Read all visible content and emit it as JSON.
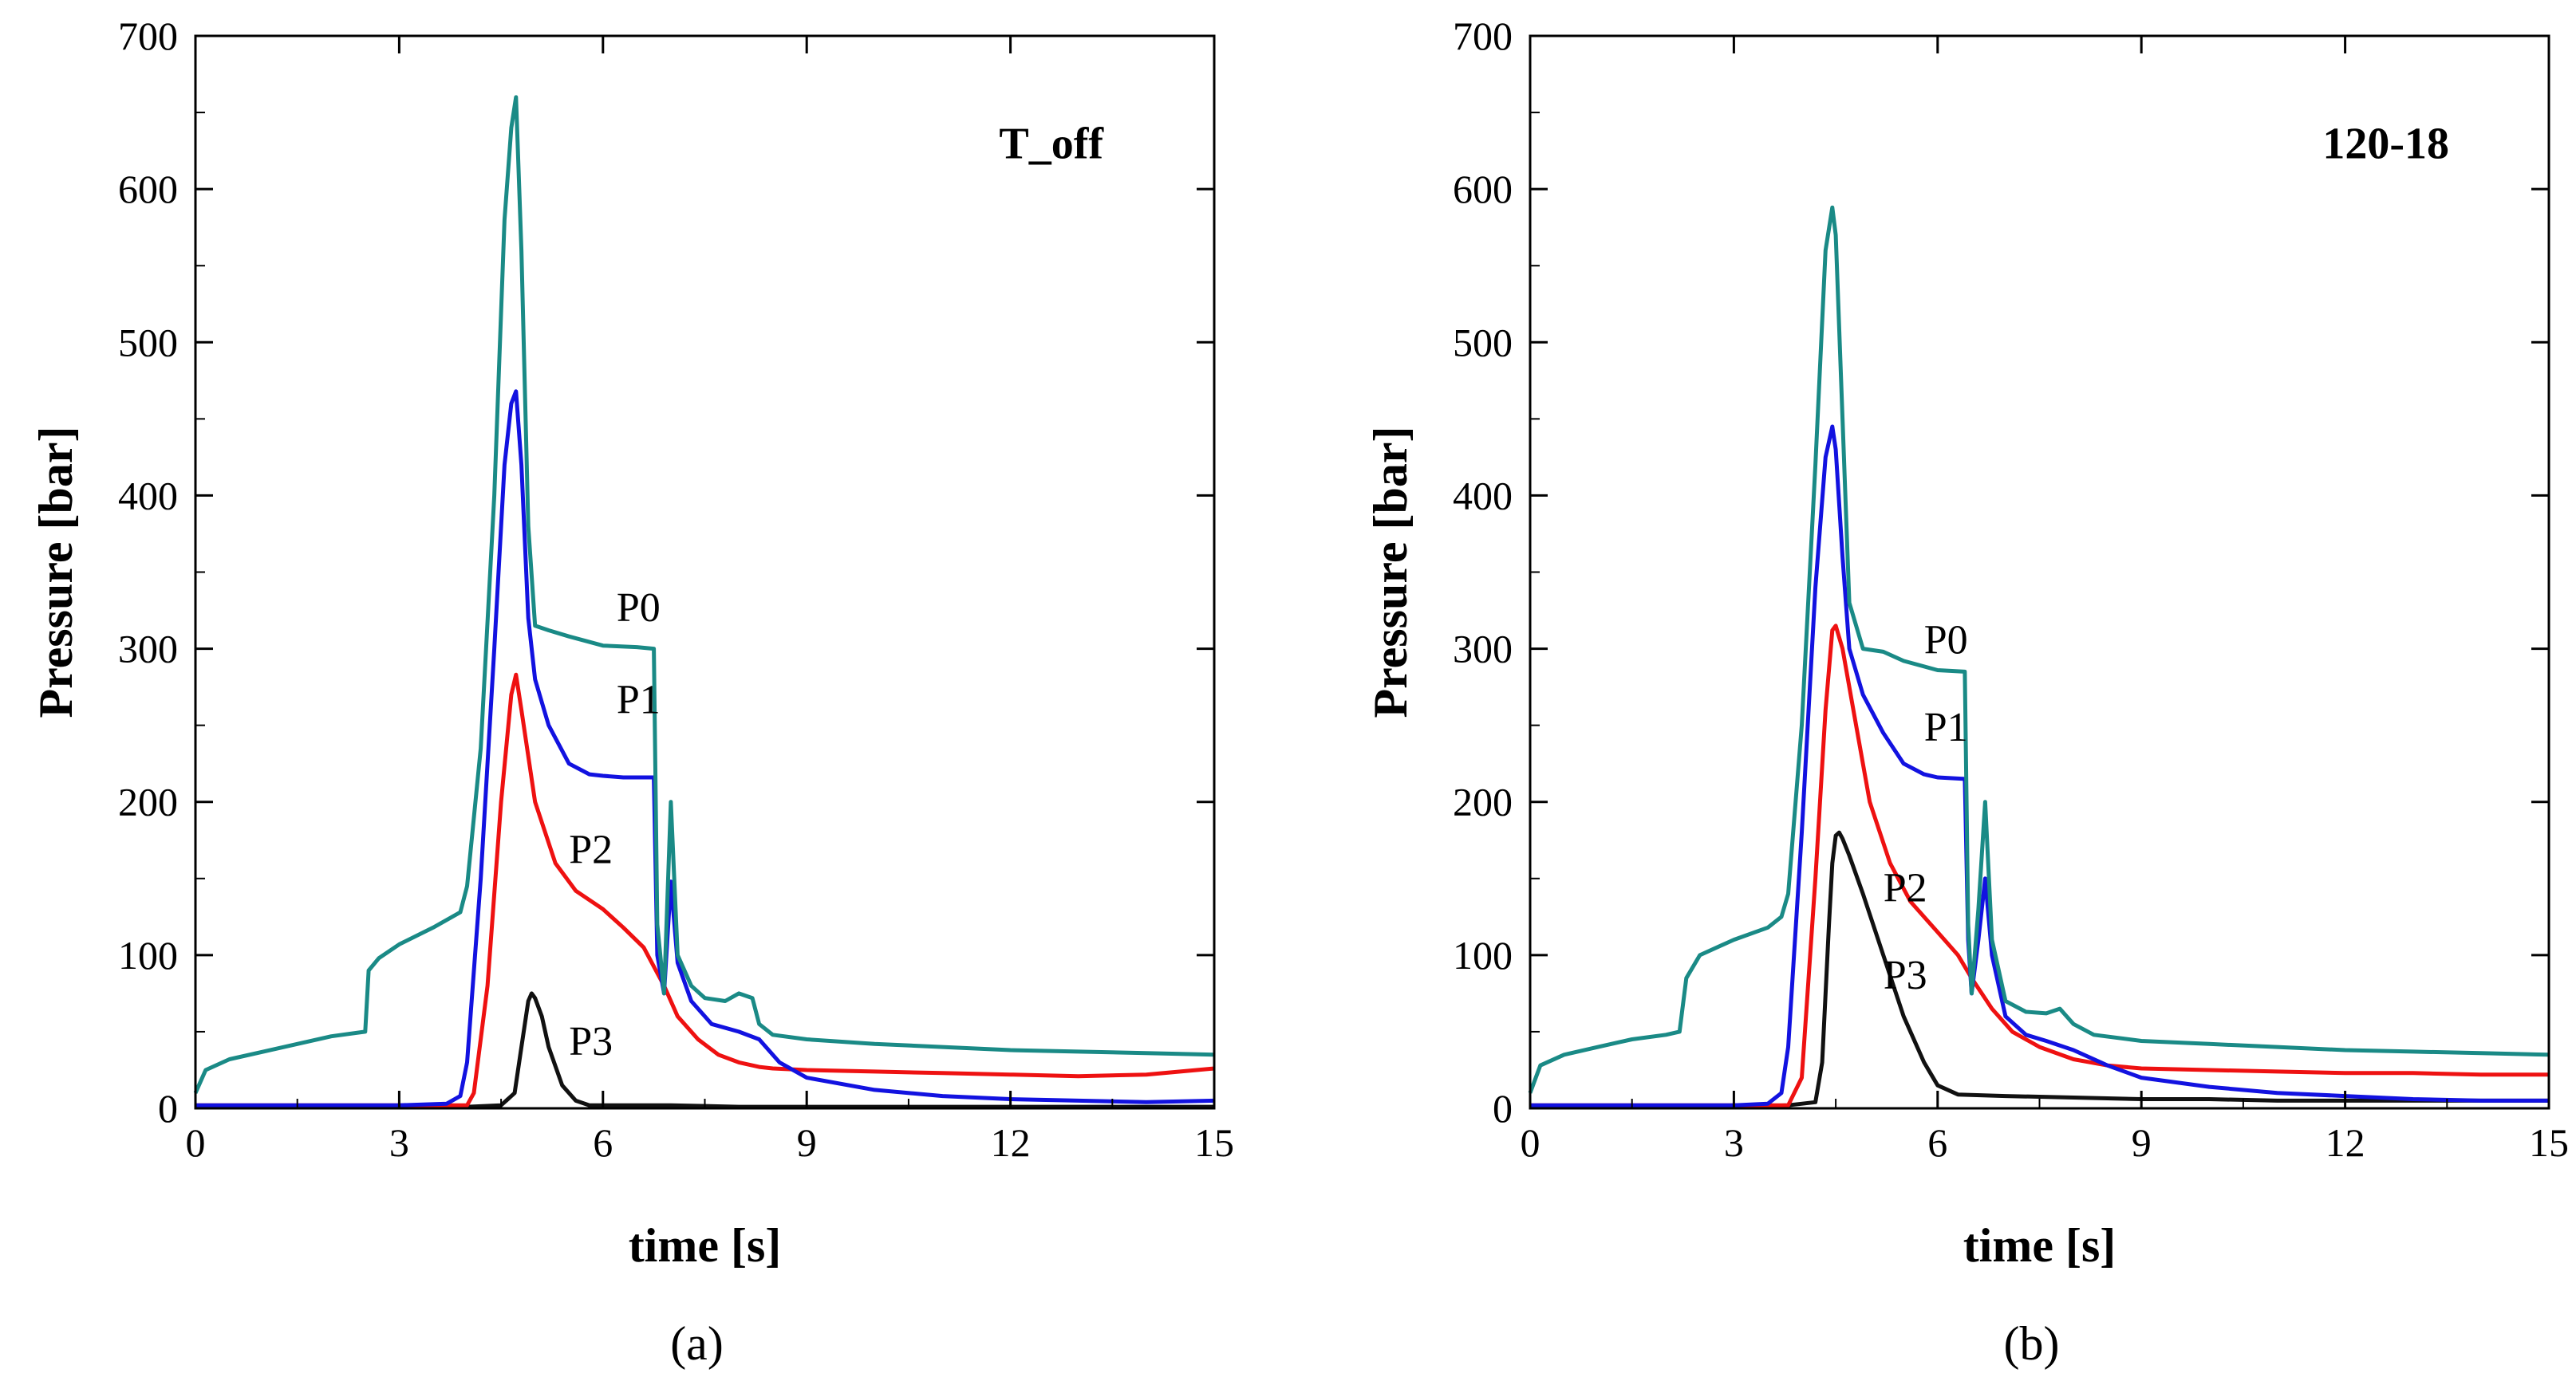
{
  "chart_data": [
    {
      "type": "line",
      "panel": "(a)",
      "title": "T_off",
      "xlabel": "time [s]",
      "ylabel": "Pressure [bar]",
      "xlim": [
        0,
        15
      ],
      "ylim": [
        0,
        700
      ],
      "xticks": [
        0,
        3,
        6,
        9,
        12,
        15
      ],
      "yticks": [
        0,
        100,
        200,
        300,
        400,
        500,
        600,
        700
      ],
      "grid": false,
      "series": [
        {
          "name": "P0",
          "color": "#1a8a86",
          "label_at": [
            6.2,
            318
          ],
          "x": [
            0,
            0.15,
            0.5,
            1.0,
            1.5,
            2.0,
            2.5,
            2.55,
            2.7,
            3.0,
            3.5,
            3.9,
            4.0,
            4.2,
            4.4,
            4.55,
            4.65,
            4.72,
            4.8,
            4.9,
            5.0,
            5.2,
            5.5,
            6.0,
            6.5,
            6.75,
            6.8,
            6.9,
            7.0,
            7.1,
            7.3,
            7.5,
            7.8,
            8.0,
            8.2,
            8.3,
            8.5,
            9,
            10,
            11,
            12,
            13,
            14,
            15
          ],
          "y": [
            10,
            25,
            32,
            37,
            42,
            47,
            50,
            90,
            98,
            107,
            118,
            128,
            145,
            235,
            400,
            580,
            640,
            660,
            560,
            380,
            315,
            312,
            308,
            302,
            301,
            300,
            120,
            75,
            200,
            100,
            80,
            72,
            70,
            75,
            72,
            55,
            48,
            45,
            42,
            40,
            38,
            37,
            36,
            35
          ]
        },
        {
          "name": "P1",
          "color": "#1212e0",
          "label_at": [
            6.2,
            258
          ],
          "x": [
            0,
            1,
            2,
            3,
            3.7,
            3.9,
            4.0,
            4.2,
            4.4,
            4.55,
            4.65,
            4.72,
            4.8,
            4.9,
            5.0,
            5.2,
            5.5,
            5.8,
            6.0,
            6.3,
            6.75,
            6.8,
            6.9,
            7.0,
            7.1,
            7.3,
            7.6,
            8.0,
            8.3,
            8.6,
            9,
            10,
            11,
            12,
            13,
            14,
            15
          ],
          "y": [
            2,
            2,
            2,
            2,
            3,
            8,
            30,
            150,
            300,
            420,
            460,
            468,
            420,
            320,
            280,
            250,
            225,
            218,
            217,
            216,
            216,
            100,
            75,
            148,
            95,
            70,
            55,
            50,
            45,
            30,
            20,
            12,
            8,
            6,
            5,
            4,
            5
          ]
        },
        {
          "name": "P2",
          "color": "#ee1111",
          "label_at": [
            5.5,
            160
          ],
          "x": [
            0,
            1,
            2,
            3,
            4.0,
            4.1,
            4.3,
            4.5,
            4.65,
            4.72,
            4.8,
            5.0,
            5.3,
            5.6,
            6.0,
            6.3,
            6.6,
            6.9,
            7.1,
            7.4,
            7.7,
            8.0,
            8.3,
            8.5,
            9,
            10,
            11,
            12,
            13,
            14,
            15
          ],
          "y": [
            2,
            2,
            2,
            2,
            2,
            10,
            80,
            200,
            270,
            283,
            260,
            200,
            160,
            142,
            130,
            118,
            105,
            80,
            60,
            45,
            35,
            30,
            27,
            26,
            25,
            24,
            23,
            22,
            21,
            22,
            26
          ]
        },
        {
          "name": "P3",
          "color": "#111111",
          "label_at": [
            5.5,
            35
          ],
          "x": [
            0,
            1,
            2,
            3,
            4,
            4.5,
            4.7,
            4.8,
            4.9,
            4.95,
            5.0,
            5.1,
            5.2,
            5.4,
            5.6,
            5.8,
            6.0,
            7,
            8,
            9,
            10,
            11,
            12,
            13,
            14,
            15
          ],
          "y": [
            1,
            1,
            1,
            1,
            1,
            2,
            10,
            40,
            70,
            75,
            72,
            60,
            40,
            15,
            5,
            2,
            2,
            2,
            1,
            1,
            1,
            1,
            1,
            1,
            1,
            1
          ]
        }
      ]
    },
    {
      "type": "line",
      "panel": "(b)",
      "title": "120-18",
      "xlabel": "time [s]",
      "ylabel": "Pressure [bar]",
      "xlim": [
        0,
        15
      ],
      "ylim": [
        0,
        700
      ],
      "xticks": [
        0,
        3,
        6,
        9,
        12,
        15
      ],
      "yticks": [
        0,
        100,
        200,
        300,
        400,
        500,
        600,
        700
      ],
      "grid": false,
      "series": [
        {
          "name": "P0",
          "color": "#1a8a86",
          "label_at": [
            5.8,
            297
          ],
          "x": [
            0,
            0.15,
            0.5,
            1.0,
            1.5,
            2.0,
            2.2,
            2.3,
            2.5,
            3.0,
            3.5,
            3.7,
            3.8,
            4.0,
            4.2,
            4.35,
            4.45,
            4.5,
            4.6,
            4.7,
            4.9,
            5.2,
            5.5,
            6.0,
            6.4,
            6.45,
            6.5,
            6.6,
            6.7,
            6.8,
            7.0,
            7.3,
            7.6,
            7.8,
            8.0,
            8.3,
            9,
            10,
            11,
            12,
            13,
            14,
            15
          ],
          "y": [
            10,
            28,
            35,
            40,
            45,
            48,
            50,
            85,
            100,
            110,
            118,
            125,
            140,
            250,
            420,
            560,
            588,
            570,
            450,
            330,
            300,
            298,
            292,
            286,
            285,
            120,
            75,
            130,
            200,
            110,
            70,
            63,
            62,
            65,
            55,
            48,
            44,
            42,
            40,
            38,
            37,
            36,
            35
          ]
        },
        {
          "name": "P1",
          "color": "#1212e0",
          "label_at": [
            5.8,
            240
          ],
          "x": [
            0,
            1,
            2,
            3,
            3.5,
            3.7,
            3.8,
            4.0,
            4.2,
            4.35,
            4.45,
            4.5,
            4.6,
            4.7,
            4.9,
            5.2,
            5.5,
            5.8,
            6.0,
            6.4,
            6.45,
            6.5,
            6.6,
            6.7,
            6.8,
            7.0,
            7.3,
            7.6,
            8.0,
            8.5,
            9,
            10,
            11,
            12,
            13,
            14,
            15
          ],
          "y": [
            2,
            2,
            2,
            2,
            3,
            10,
            40,
            180,
            340,
            425,
            445,
            430,
            360,
            300,
            270,
            245,
            225,
            218,
            216,
            215,
            110,
            75,
            110,
            150,
            100,
            60,
            48,
            44,
            38,
            28,
            20,
            14,
            10,
            8,
            6,
            5,
            5
          ]
        },
        {
          "name": "P2",
          "color": "#ee1111",
          "label_at": [
            5.2,
            135
          ],
          "x": [
            0,
            1,
            2,
            3,
            3.8,
            4.0,
            4.2,
            4.35,
            4.45,
            4.5,
            4.6,
            4.8,
            5.0,
            5.3,
            5.6,
            6.0,
            6.3,
            6.5,
            6.8,
            7.1,
            7.5,
            8.0,
            8.5,
            9,
            10,
            11,
            12,
            13,
            14,
            15
          ],
          "y": [
            2,
            2,
            2,
            2,
            2,
            20,
            150,
            260,
            312,
            315,
            300,
            250,
            200,
            160,
            135,
            115,
            100,
            85,
            65,
            50,
            40,
            32,
            28,
            26,
            25,
            24,
            23,
            23,
            22,
            22
          ]
        },
        {
          "name": "P3",
          "color": "#111111",
          "label_at": [
            5.2,
            78
          ],
          "x": [
            0,
            1,
            2,
            3,
            3.8,
            4.2,
            4.3,
            4.4,
            4.45,
            4.5,
            4.55,
            4.6,
            4.7,
            4.9,
            5.2,
            5.5,
            5.8,
            6.0,
            6.3,
            7,
            8,
            9,
            10,
            11,
            12,
            13,
            14,
            15
          ],
          "y": [
            1,
            1,
            1,
            1,
            2,
            4,
            30,
            120,
            160,
            178,
            180,
            176,
            165,
            140,
            100,
            60,
            30,
            15,
            9,
            8,
            7,
            6,
            6,
            5,
            5,
            5,
            5,
            5
          ]
        }
      ]
    }
  ]
}
